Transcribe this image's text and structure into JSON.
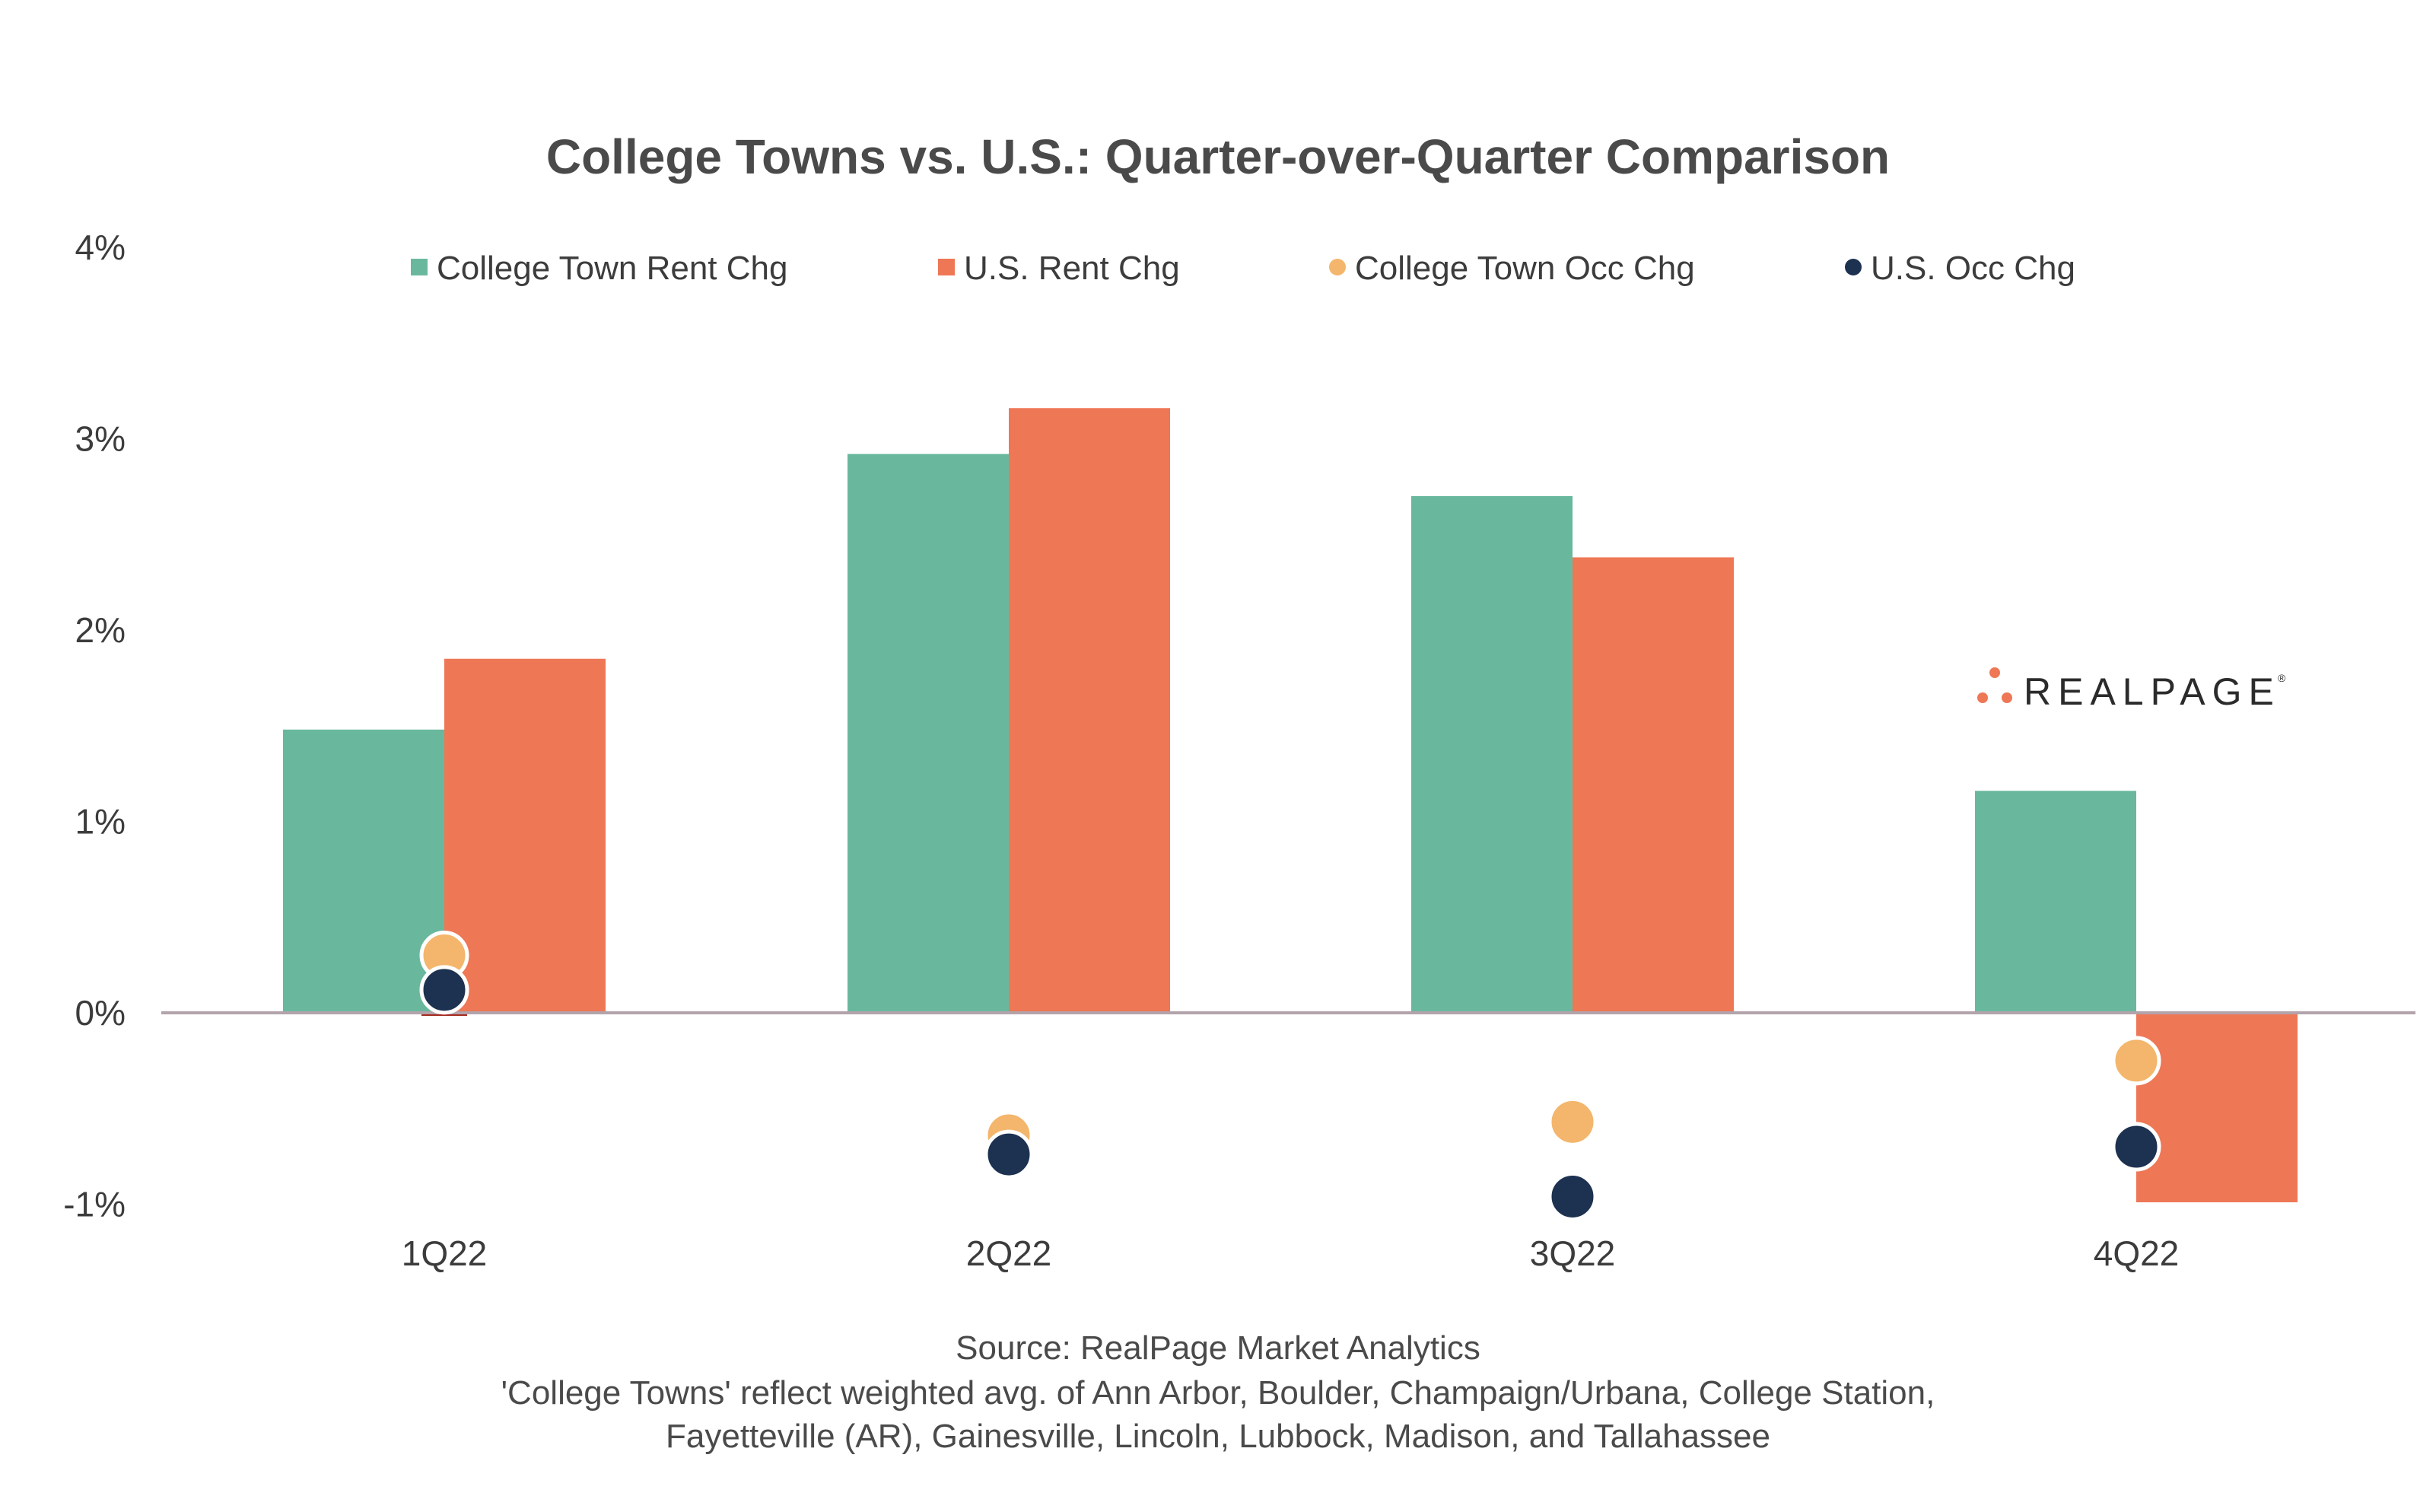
{
  "chart_data": {
    "type": "bar",
    "title": "College Towns vs. U.S.: Quarter-over-Quarter Comparison",
    "categories": [
      "1Q22",
      "2Q22",
      "3Q22",
      "4Q22"
    ],
    "ylim": [
      -1,
      4
    ],
    "yticks": [
      {
        "value": 4,
        "label": "4%"
      },
      {
        "value": 3,
        "label": "3%"
      },
      {
        "value": 2,
        "label": "2%"
      },
      {
        "value": 1,
        "label": "1%"
      },
      {
        "value": 0,
        "label": "0%"
      },
      {
        "value": -1,
        "label": "-1%"
      }
    ],
    "grid": false,
    "legend_position": "top",
    "series": [
      {
        "name": "College Town Rent Chg",
        "kind": "bar",
        "color": "#69b89e",
        "values": [
          1.48,
          2.92,
          2.7,
          1.16
        ]
      },
      {
        "name": "U.S. Rent Chg",
        "kind": "bar",
        "color": "#ee7756",
        "values": [
          1.85,
          3.16,
          2.38,
          -0.99
        ]
      },
      {
        "name": "College Town Occ Chg",
        "kind": "point",
        "color": "#f3b66c",
        "values": [
          0.3,
          -0.64,
          -0.57,
          -0.25
        ]
      },
      {
        "name": "U.S. Occ Chg",
        "kind": "point",
        "color": "#1d3150",
        "values": [
          0.12,
          -0.74,
          -0.96,
          -0.7
        ]
      }
    ],
    "source_lines": [
      "Source: RealPage Market Analytics",
      "'College Towns' reflect weighted avg. of Ann Arbor, Boulder, Champaign/Urbana, College Station,",
      "Fayetteville (AR), Gainesville, Lincoln, Lubbock, Madison, and Tallahassee"
    ],
    "logo": {
      "text": "REALPAGE",
      "mark": "®",
      "accent_color": "#ee7756"
    }
  }
}
